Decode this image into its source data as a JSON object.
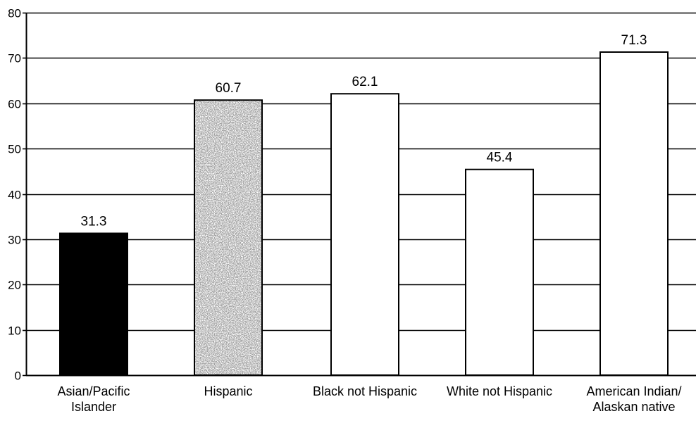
{
  "chart_data": {
    "type": "bar",
    "title": "",
    "xlabel": "",
    "ylabel": "",
    "ylim": [
      0,
      80
    ],
    "yticks": [
      0,
      10,
      20,
      30,
      40,
      50,
      60,
      70,
      80
    ],
    "grid": true,
    "legend": "none",
    "categories": [
      "Asian/Pacific Islander",
      "Hispanic",
      "Black not Hispanic",
      "White not Hispanic",
      "American Indian/ Alaskan native"
    ],
    "category_lines": [
      [
        "Asian/Pacific",
        "Islander"
      ],
      [
        "Hispanic"
      ],
      [
        "Black not Hispanic"
      ],
      [
        "White not Hispanic"
      ],
      [
        "American Indian/",
        "Alaskan native"
      ]
    ],
    "values": [
      31.3,
      60.7,
      62.1,
      45.4,
      71.3
    ],
    "value_labels": [
      "31.3",
      "60.7",
      "62.1",
      "45.4",
      "71.3"
    ],
    "bar_fills": [
      "#000000",
      "stipple",
      "#ffffff",
      "#ffffff",
      "#ffffff"
    ]
  }
}
